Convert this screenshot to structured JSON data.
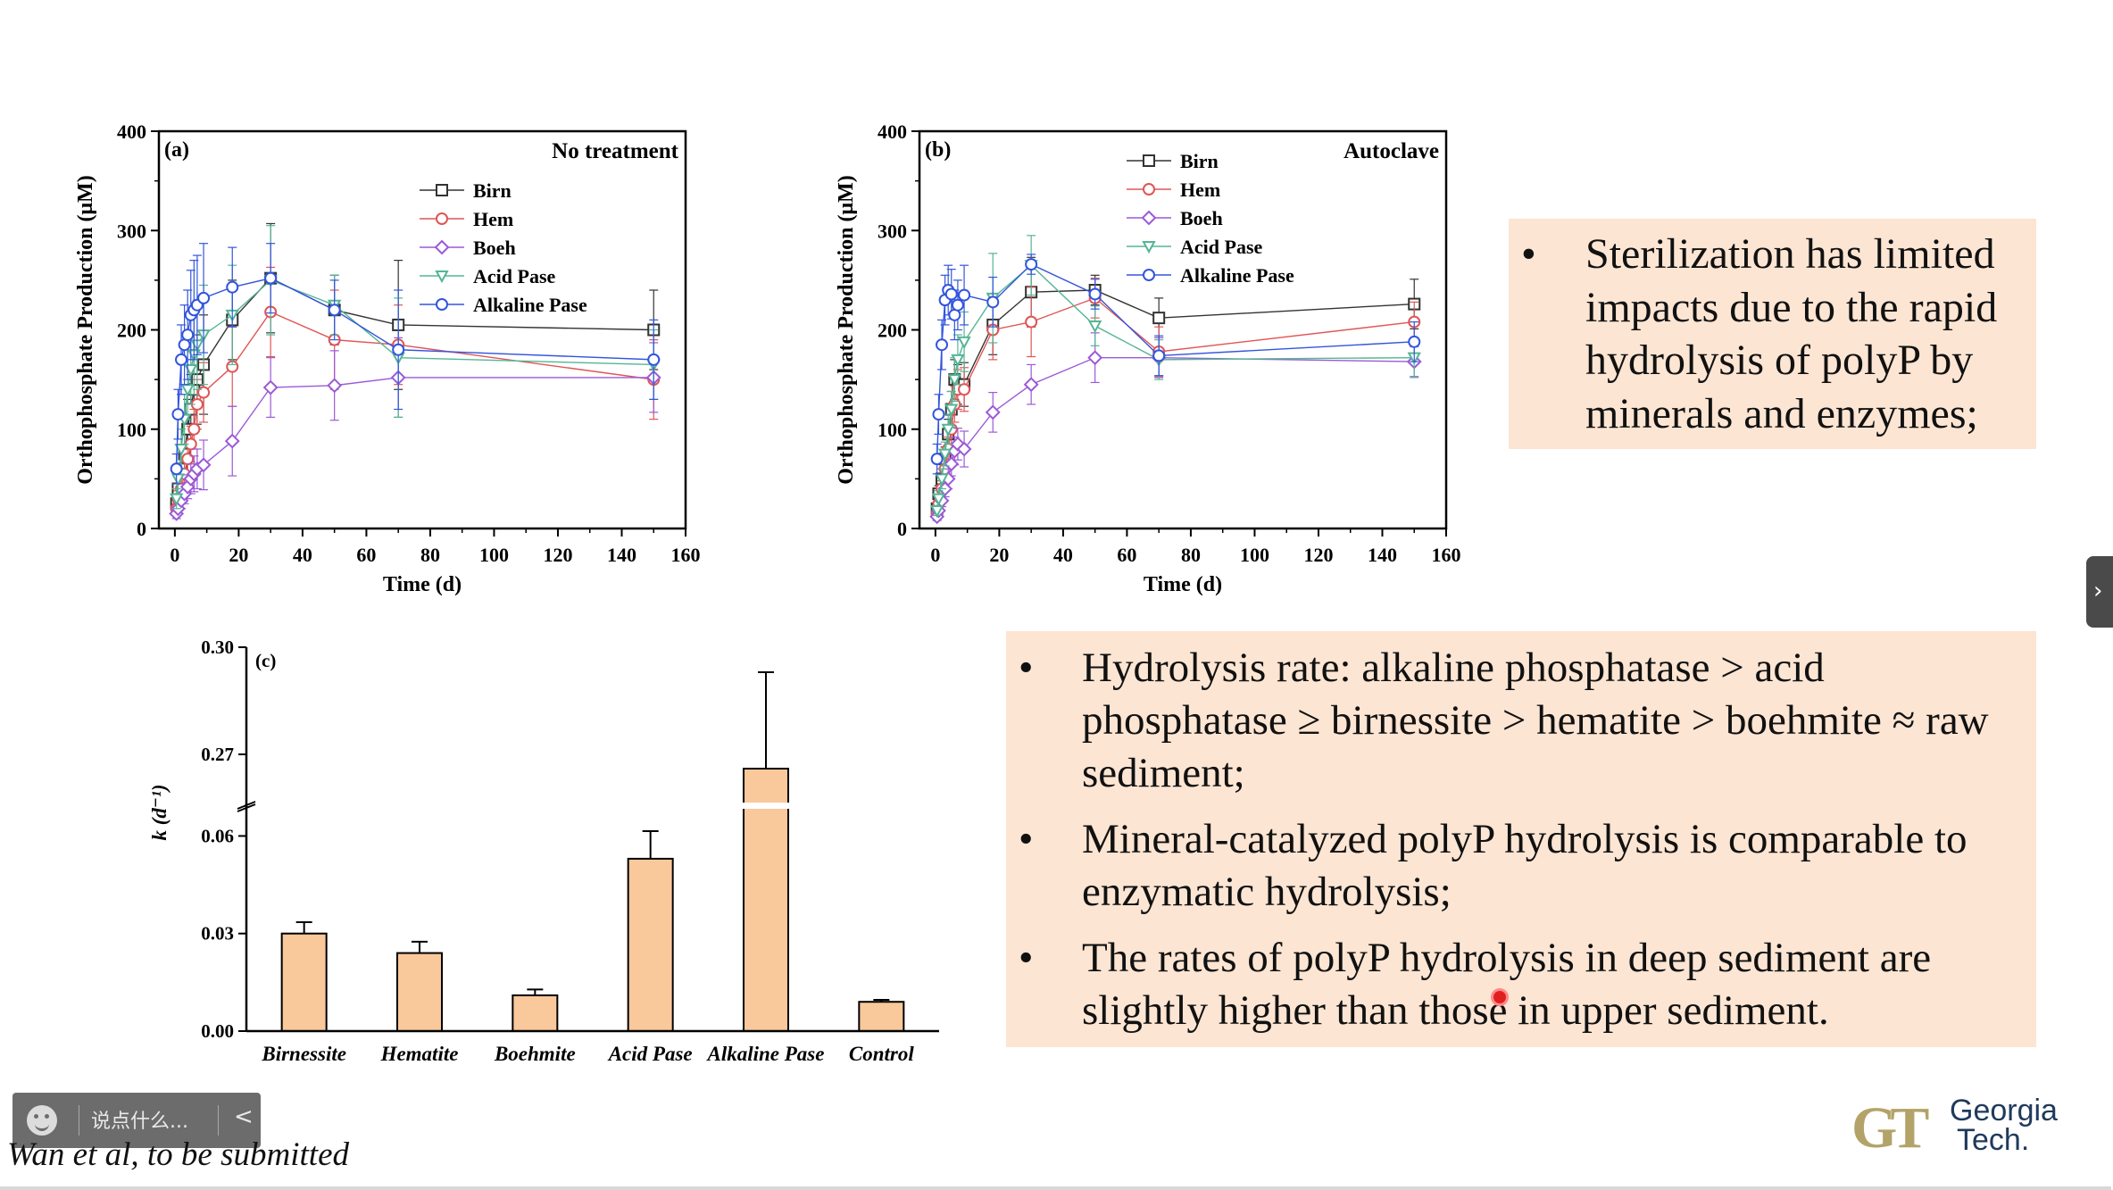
{
  "chart_data": [
    {
      "type": "line",
      "panel": "(a)",
      "title": "No treatment",
      "xlabel": "Time (d)",
      "ylabel": "Orthophosphate Production (μM)",
      "xlim": [
        -5,
        160
      ],
      "ylim": [
        0,
        400
      ],
      "xticks": [
        0,
        20,
        40,
        60,
        80,
        100,
        120,
        140,
        160
      ],
      "yticks": [
        0,
        100,
        200,
        300,
        400
      ],
      "legend_position": "top-right",
      "series": [
        {
          "name": "Birn",
          "marker": "square",
          "color": "#333333",
          "x": [
            0.5,
            1,
            2,
            3,
            4,
            5,
            6,
            7,
            9,
            18,
            30,
            50,
            70,
            150
          ],
          "y": [
            25,
            40,
            60,
            75,
            100,
            120,
            140,
            150,
            165,
            210,
            252,
            220,
            205,
            200
          ],
          "err": [
            10,
            15,
            20,
            25,
            30,
            35,
            40,
            45,
            50,
            40,
            55,
            35,
            65,
            40
          ]
        },
        {
          "name": "Hem",
          "marker": "circle",
          "color": "#e05555",
          "x": [
            0.5,
            1,
            2,
            3,
            4,
            5,
            6,
            7,
            9,
            18,
            30,
            50,
            70,
            150
          ],
          "y": [
            20,
            30,
            40,
            55,
            70,
            85,
            100,
            125,
            137,
            163,
            218,
            190,
            185,
            150
          ],
          "err": [
            5,
            8,
            10,
            12,
            15,
            18,
            20,
            25,
            30,
            40,
            45,
            50,
            40,
            40
          ]
        },
        {
          "name": "Boeh",
          "marker": "diamond",
          "color": "#9b59d6",
          "x": [
            0.5,
            1,
            2,
            3,
            4,
            5,
            6,
            7,
            9,
            18,
            30,
            50,
            70,
            150
          ],
          "y": [
            15,
            20,
            28,
            35,
            42,
            50,
            55,
            60,
            64,
            88,
            142,
            144,
            152,
            152
          ],
          "err": [
            5,
            6,
            8,
            10,
            12,
            15,
            18,
            20,
            25,
            35,
            30,
            35,
            40,
            35
          ]
        },
        {
          "name": "Acid Pase",
          "marker": "triangle-down",
          "color": "#55b595",
          "x": [
            0.5,
            1,
            2,
            3,
            4,
            5,
            6,
            7,
            9,
            18,
            30,
            50,
            70,
            150
          ],
          "y": [
            30,
            50,
            80,
            110,
            140,
            160,
            175,
            185,
            195,
            215,
            250,
            225,
            172,
            165
          ],
          "err": [
            10,
            15,
            20,
            25,
            30,
            35,
            40,
            45,
            50,
            50,
            55,
            30,
            60,
            35
          ]
        },
        {
          "name": "Alkaline Pase",
          "marker": "circle",
          "color": "#3355dd",
          "x": [
            0.5,
            1,
            2,
            3,
            4,
            5,
            6,
            7,
            9,
            18,
            30,
            50,
            70,
            150
          ],
          "y": [
            60,
            115,
            170,
            185,
            195,
            215,
            220,
            225,
            232,
            243,
            252,
            220,
            180,
            170
          ],
          "err": [
            15,
            25,
            35,
            40,
            45,
            45,
            50,
            50,
            55,
            40,
            35,
            30,
            60,
            40
          ]
        }
      ]
    },
    {
      "type": "line",
      "panel": "(b)",
      "title": "Autoclave",
      "xlabel": "Time (d)",
      "ylabel": "Orthophosphate Production (μM)",
      "xlim": [
        -5,
        160
      ],
      "ylim": [
        0,
        400
      ],
      "xticks": [
        0,
        20,
        40,
        60,
        80,
        100,
        120,
        140,
        160
      ],
      "yticks": [
        0,
        100,
        200,
        300,
        400
      ],
      "legend_position": "top-left",
      "series": [
        {
          "name": "Birn",
          "marker": "square",
          "color": "#333333",
          "x": [
            0.5,
            1,
            2,
            3,
            4,
            5,
            6,
            7,
            9,
            18,
            30,
            50,
            70,
            150
          ],
          "y": [
            20,
            35,
            50,
            70,
            95,
            120,
            150,
            145,
            145,
            205,
            238,
            240,
            212,
            226
          ],
          "err": [
            5,
            8,
            10,
            12,
            15,
            18,
            20,
            20,
            22,
            30,
            35,
            15,
            20,
            25
          ]
        },
        {
          "name": "Hem",
          "marker": "circle",
          "color": "#e05555",
          "x": [
            0.5,
            1,
            2,
            3,
            4,
            5,
            6,
            7,
            9,
            18,
            30,
            50,
            70,
            150
          ],
          "y": [
            15,
            25,
            40,
            60,
            80,
            100,
            125,
            140,
            140,
            200,
            208,
            232,
            178,
            208
          ],
          "err": [
            5,
            6,
            8,
            10,
            12,
            15,
            18,
            20,
            22,
            30,
            35,
            20,
            25,
            20
          ]
        },
        {
          "name": "Boeh",
          "marker": "diamond",
          "color": "#9b59d6",
          "x": [
            0.5,
            1,
            2,
            3,
            4,
            5,
            6,
            7,
            9,
            18,
            30,
            50,
            70,
            150
          ],
          "y": [
            12,
            18,
            28,
            40,
            50,
            65,
            78,
            85,
            80,
            117,
            145,
            172,
            172,
            168
          ],
          "err": [
            4,
            5,
            6,
            8,
            10,
            12,
            14,
            16,
            18,
            20,
            20,
            25,
            20,
            15
          ]
        },
        {
          "name": "Acid Pase",
          "marker": "triangle-down",
          "color": "#55b595",
          "x": [
            0.5,
            1,
            2,
            3,
            4,
            5,
            6,
            7,
            9,
            18,
            30,
            50,
            70,
            150
          ],
          "y": [
            18,
            30,
            50,
            75,
            100,
            120,
            150,
            170,
            188,
            232,
            265,
            204,
            170,
            172
          ],
          "err": [
            5,
            8,
            10,
            12,
            15,
            18,
            22,
            25,
            30,
            45,
            30,
            20,
            20,
            20
          ]
        },
        {
          "name": "Alkaline Pase",
          "marker": "circle",
          "color": "#3355dd",
          "x": [
            0.5,
            1,
            2,
            3,
            4,
            5,
            6,
            7,
            9,
            18,
            30,
            50,
            70,
            150
          ],
          "y": [
            70,
            115,
            185,
            230,
            240,
            236,
            215,
            225,
            235,
            228,
            266,
            236,
            174,
            188
          ],
          "err": [
            15,
            20,
            25,
            25,
            25,
            25,
            25,
            25,
            30,
            25,
            10,
            15,
            20,
            20
          ]
        }
      ]
    },
    {
      "type": "bar",
      "panel": "(c)",
      "xlabel": "",
      "ylabel": "k (d⁻¹)",
      "ylim_lower": [
        0,
        0.07
      ],
      "ylim_upper": [
        0.255,
        0.3
      ],
      "yticks_lower": [
        "0.00",
        "0.03",
        "0.06"
      ],
      "yticks_upper": [
        "0.27",
        "0.30"
      ],
      "bar_color": "#f9c89b",
      "categories": [
        "Birnessite",
        "Hematite",
        "Boehmite",
        "Acid Pase",
        "Alkaline Pase",
        "Control"
      ],
      "values": [
        0.03,
        0.024,
        0.011,
        0.053,
        0.266,
        0.009
      ],
      "errors": [
        0.0035,
        0.0035,
        0.0018,
        0.0085,
        0.027,
        0.0006
      ]
    }
  ],
  "bullets_top": [
    "Sterilization has limited impacts due to the rapid hydrolysis of polyP by minerals and enzymes;"
  ],
  "bullets_bottom": [
    "Hydrolysis rate: alkaline phosphatase > acid phosphatase ≥ birnessite > hematite > boehmite ≈ raw sediment;",
    "Mineral-catalyzed polyP hydrolysis is comparable to enzymatic hydrolysis;",
    "The rates of polyP hydrolysis in deep sediment are slightly higher than those in upper sediment."
  ],
  "bullet_symbol": "•",
  "citation": "Wan et al, to be submitted",
  "logo": {
    "mark": "GT",
    "line1": "Georgia",
    "line2": "Tech."
  },
  "comment_bar": {
    "placeholder": "说点什么...",
    "collapse": "<"
  },
  "side_tab": {
    "label": "›"
  },
  "icons": {
    "emoji": "smiley-face-icon",
    "collapse": "chevron-left-icon",
    "expand": "chevron-right-icon"
  }
}
